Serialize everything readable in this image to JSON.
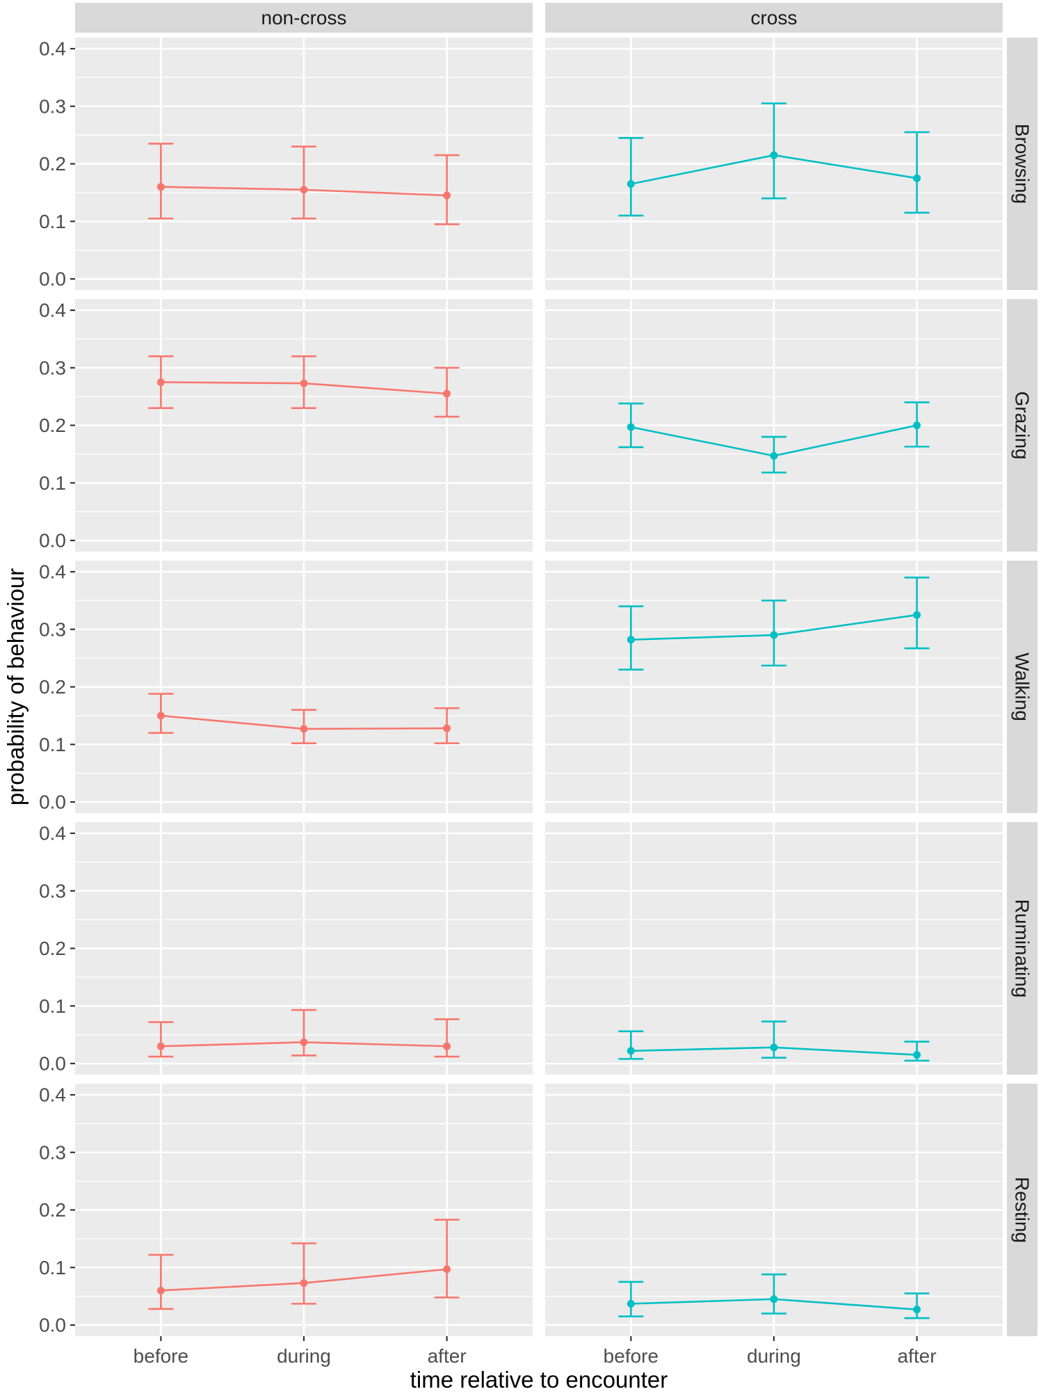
{
  "chart_data": {
    "type": "line",
    "title": "",
    "xlabel": "time relative to encounter",
    "ylabel": "probability of behaviour",
    "facet_cols": [
      "non-cross",
      "cross"
    ],
    "facet_rows": [
      "Browsing",
      "Grazing",
      "Walking",
      "Ruminating",
      "Resting"
    ],
    "x_categories": [
      "before",
      "during",
      "after"
    ],
    "ylim": [
      0,
      0.4
    ],
    "y_ticks": [
      0.0,
      0.1,
      0.2,
      0.3,
      0.4
    ],
    "y_tick_labels": [
      "0.0",
      "0.1",
      "0.2",
      "0.3",
      "0.4"
    ],
    "series_colors": [
      "#F8766D",
      "#00BFC4"
    ],
    "error_bars": true,
    "grid": true,
    "legend": "none",
    "cells": [
      {
        "row": "Browsing",
        "col": "non-cross",
        "y": [
          0.16,
          0.155,
          0.145
        ],
        "lo": [
          0.105,
          0.105,
          0.095
        ],
        "hi": [
          0.235,
          0.23,
          0.215
        ]
      },
      {
        "row": "Browsing",
        "col": "cross",
        "y": [
          0.165,
          0.215,
          0.175
        ],
        "lo": [
          0.11,
          0.14,
          0.115
        ],
        "hi": [
          0.245,
          0.305,
          0.255
        ]
      },
      {
        "row": "Grazing",
        "col": "non-cross",
        "y": [
          0.275,
          0.273,
          0.255
        ],
        "lo": [
          0.23,
          0.23,
          0.215
        ],
        "hi": [
          0.32,
          0.32,
          0.3
        ]
      },
      {
        "row": "Grazing",
        "col": "cross",
        "y": [
          0.197,
          0.147,
          0.2
        ],
        "lo": [
          0.162,
          0.118,
          0.163
        ],
        "hi": [
          0.238,
          0.18,
          0.24
        ]
      },
      {
        "row": "Walking",
        "col": "non-cross",
        "y": [
          0.15,
          0.127,
          0.128
        ],
        "lo": [
          0.12,
          0.102,
          0.102
        ],
        "hi": [
          0.188,
          0.16,
          0.163
        ]
      },
      {
        "row": "Walking",
        "col": "cross",
        "y": [
          0.282,
          0.29,
          0.325
        ],
        "lo": [
          0.23,
          0.237,
          0.267
        ],
        "hi": [
          0.34,
          0.35,
          0.39
        ]
      },
      {
        "row": "Ruminating",
        "col": "non-cross",
        "y": [
          0.03,
          0.037,
          0.03
        ],
        "lo": [
          0.012,
          0.014,
          0.012
        ],
        "hi": [
          0.072,
          0.093,
          0.077
        ]
      },
      {
        "row": "Ruminating",
        "col": "cross",
        "y": [
          0.022,
          0.028,
          0.015
        ],
        "lo": [
          0.008,
          0.01,
          0.005
        ],
        "hi": [
          0.056,
          0.073,
          0.038
        ]
      },
      {
        "row": "Resting",
        "col": "non-cross",
        "y": [
          0.06,
          0.073,
          0.097
        ],
        "lo": [
          0.028,
          0.037,
          0.048
        ],
        "hi": [
          0.122,
          0.142,
          0.183
        ]
      },
      {
        "row": "Resting",
        "col": "cross",
        "y": [
          0.037,
          0.045,
          0.027
        ],
        "lo": [
          0.015,
          0.02,
          0.012
        ],
        "hi": [
          0.075,
          0.088,
          0.055
        ]
      }
    ]
  },
  "theme": {
    "background": "#FFFFFF",
    "panel_bg": "#EBEBEB",
    "strip_bg": "#D9D9D9",
    "grid_color": "#FFFFFF",
    "tick_color": "#333333",
    "tick_label_color": "#4D4D4D",
    "axis_title_color": "#000000",
    "strip_text_color": "#1A1A1A"
  }
}
